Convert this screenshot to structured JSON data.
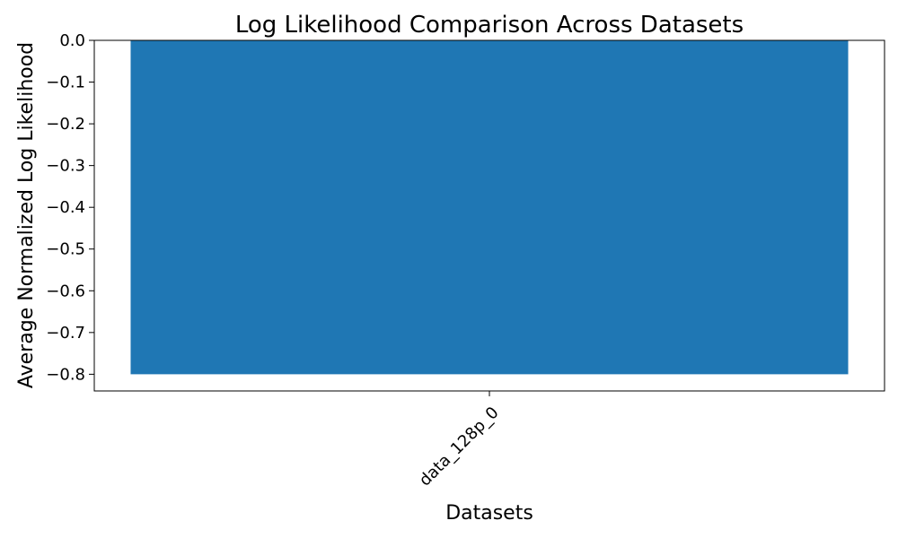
{
  "chart_data": {
    "type": "bar",
    "title": "Log Likelihood Comparison Across Datasets",
    "xlabel": "Datasets",
    "ylabel": "Average Normalized Log Likelihood",
    "categories": [
      "data_128p_0"
    ],
    "values": [
      -0.8
    ],
    "ylim": [
      -0.84,
      0.0
    ],
    "yticks": [
      0.0,
      -0.1,
      -0.2,
      -0.3,
      -0.4,
      -0.5,
      -0.6,
      -0.7,
      -0.8
    ],
    "ytick_labels": [
      "0.0",
      "−0.1",
      "−0.2",
      "−0.3",
      "−0.4",
      "−0.5",
      "−0.6",
      "−0.7",
      "−0.8"
    ],
    "grid": false,
    "legend": "none",
    "bar_color": "#1f77b4",
    "xtick_rotation_deg": 45
  }
}
